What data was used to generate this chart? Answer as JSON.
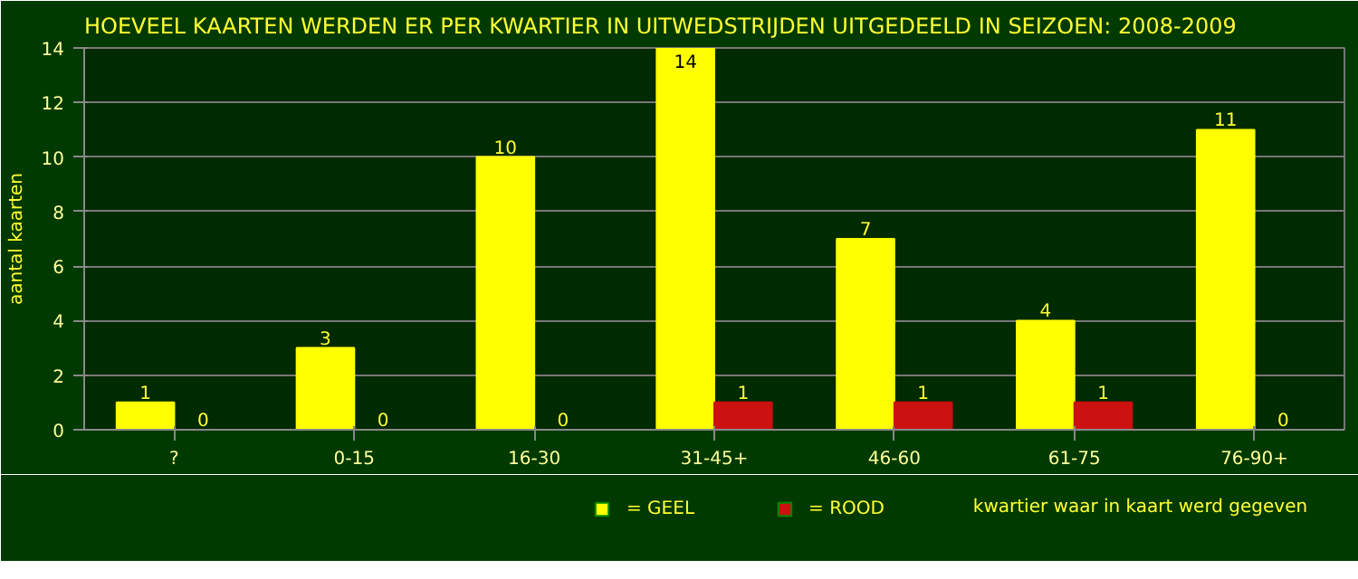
{
  "chart_data": {
    "type": "bar",
    "title": "HOEVEEL KAARTEN WERDEN ER PER KWARTIER IN UITWEDSTRIJDEN UITGEDEELD IN SEIZOEN: 2008-2009",
    "categories": [
      "?",
      "0-15",
      "16-30",
      "31-45+",
      "46-60",
      "61-75",
      "76-90+"
    ],
    "series": [
      {
        "name": "= GEEL",
        "color": "#ffff00",
        "values": [
          1,
          3,
          10,
          14,
          7,
          4,
          11
        ]
      },
      {
        "name": "= ROOD",
        "color": "#cc1111",
        "values": [
          0,
          0,
          0,
          1,
          1,
          1,
          0
        ]
      }
    ],
    "ylim": [
      0,
      14
    ],
    "yticks": [
      0,
      2,
      4,
      6,
      8,
      10,
      12,
      14
    ],
    "ylabel": "aantal kaarten",
    "xlabel": "kwartier waar in kaart werd gegeven",
    "grid": "y",
    "legend": "bottom",
    "data_labels": true
  }
}
